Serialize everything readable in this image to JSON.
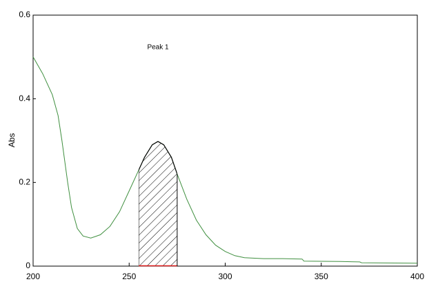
{
  "chart_data": {
    "type": "line",
    "ylabel": "Abs",
    "x": [
      200,
      205,
      210,
      213,
      215,
      218,
      220,
      223,
      226,
      230,
      235,
      240,
      245,
      250,
      255,
      258,
      262,
      265,
      268,
      272,
      275,
      280,
      285,
      290,
      295,
      300,
      305,
      310,
      320,
      330,
      340,
      341,
      360,
      370,
      371,
      400
    ],
    "values": [
      0.5,
      0.46,
      0.41,
      0.36,
      0.3,
      0.2,
      0.14,
      0.09,
      0.072,
      0.067,
      0.075,
      0.095,
      0.13,
      0.18,
      0.23,
      0.26,
      0.29,
      0.298,
      0.29,
      0.26,
      0.22,
      0.16,
      0.11,
      0.075,
      0.05,
      0.035,
      0.025,
      0.02,
      0.018,
      0.018,
      0.017,
      0.012,
      0.011,
      0.01,
      0.008,
      0.007
    ],
    "color": "#3f8f3f",
    "peak": {
      "label": "Peak 1",
      "start": 255,
      "end": 275
    },
    "xlim": [
      200,
      400
    ],
    "xticks": [
      200,
      250,
      300,
      350,
      400
    ],
    "ylim": [
      0,
      0.6
    ],
    "yticks": [
      0,
      0.2,
      0.4,
      0.6
    ]
  }
}
